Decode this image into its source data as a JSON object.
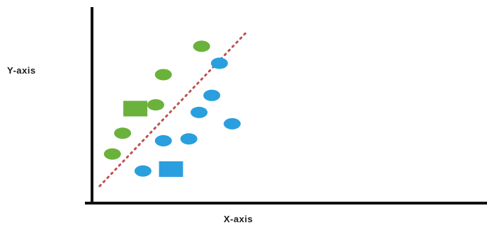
{
  "chart_data": {
    "type": "scatter",
    "title": "",
    "xlabel": "X-axis",
    "ylabel": "Y-axis",
    "xlim": [
      0,
      100
    ],
    "ylim": [
      0,
      100
    ],
    "grid": false,
    "colors": {
      "green": "#6ab23b",
      "blue": "#2a9fde",
      "boundary": "#c0504d",
      "axis": "#111111"
    },
    "series": [
      {
        "color_key": "green",
        "marker": "ellipse",
        "points": [
          {
            "x": 8,
            "y": 26
          },
          {
            "x": 12,
            "y": 37
          },
          {
            "x": 25,
            "y": 52
          },
          {
            "x": 28,
            "y": 68
          },
          {
            "x": 43,
            "y": 83
          }
        ]
      },
      {
        "color_key": "blue",
        "marker": "ellipse",
        "points": [
          {
            "x": 20,
            "y": 17
          },
          {
            "x": 28,
            "y": 33
          },
          {
            "x": 38,
            "y": 34
          },
          {
            "x": 42,
            "y": 48
          },
          {
            "x": 47,
            "y": 57
          },
          {
            "x": 50,
            "y": 74
          },
          {
            "x": 55,
            "y": 42
          }
        ]
      },
      {
        "color_key": "green",
        "marker": "square",
        "points": [
          {
            "x": 17,
            "y": 50
          }
        ]
      },
      {
        "color_key": "blue",
        "marker": "square",
        "points": [
          {
            "x": 31,
            "y": 18
          }
        ]
      }
    ],
    "boundary_line": {
      "x": [
        3,
        61
      ],
      "y": [
        9,
        91
      ],
      "style": "dotted"
    }
  }
}
